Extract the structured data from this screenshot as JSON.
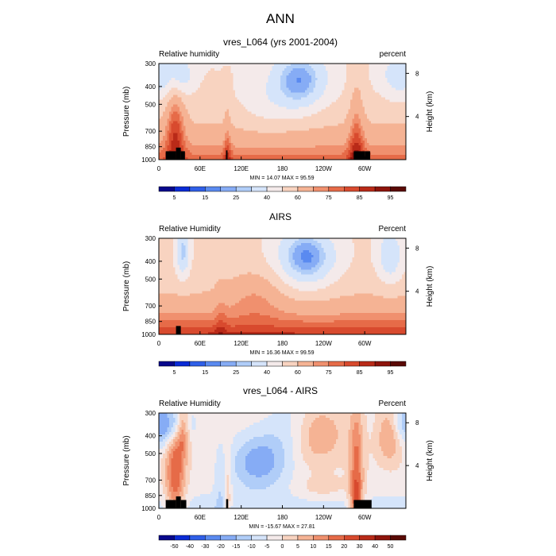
{
  "chart_data": {
    "type": "heatmap",
    "title": "ANN",
    "xticks": [
      "0",
      "60E",
      "120E",
      "180",
      "120W",
      "60W"
    ],
    "x_tick_lon": [
      0,
      60,
      120,
      180,
      240,
      300
    ],
    "x_range": [
      0,
      360
    ],
    "yticks": [
      "300",
      "400",
      "500",
      "700",
      "850",
      "1000"
    ],
    "y_tick_values": [
      300,
      400,
      500,
      700,
      850,
      1000
    ],
    "y_range": [
      300,
      1000
    ],
    "ylabel": "Pressure (mb)",
    "y2label": "Height (km)",
    "y2ticks": [
      "8",
      "4"
    ],
    "y2_tick_values": [
      8,
      4
    ],
    "panels": [
      {
        "title": "vres_L064 (yrs 2001-2004)",
        "left_label": "Relative humidity",
        "right_label": "percent",
        "stats": "MIN = 14.07  MAX = 95.59",
        "min": 14.07,
        "max": 95.59,
        "colorbar_labels": [
          "5",
          "15",
          "25",
          "40",
          "60",
          "75",
          "85",
          "95"
        ],
        "colors": [
          "#08088c",
          "#0a2bd6",
          "#2f5fe8",
          "#5a8af0",
          "#86acf5",
          "#b0cdf8",
          "#d5e4fa",
          "#f4eaea",
          "#f8d3c0",
          "#f5b394",
          "#f0906e",
          "#e66b48",
          "#d84a2e",
          "#b92a18",
          "#8e140c",
          "#5a0a05"
        ],
        "bounds": [
          5,
          10,
          15,
          20,
          25,
          30,
          40,
          50,
          60,
          70,
          75,
          80,
          85,
          90,
          95
        ]
      },
      {
        "title": "AIRS",
        "left_label": "Relative Humidity",
        "right_label": "Percent",
        "stats": "MIN = 16.36  MAX = 99.59",
        "min": 16.36,
        "max": 99.59,
        "colorbar_labels": [
          "5",
          "15",
          "25",
          "40",
          "60",
          "75",
          "85",
          "95"
        ],
        "colors": [
          "#08088c",
          "#0a2bd6",
          "#2f5fe8",
          "#5a8af0",
          "#86acf5",
          "#b0cdf8",
          "#d5e4fa",
          "#f4eaea",
          "#f8d3c0",
          "#f5b394",
          "#f0906e",
          "#e66b48",
          "#d84a2e",
          "#b92a18",
          "#8e140c",
          "#5a0a05"
        ],
        "bounds": [
          5,
          10,
          15,
          20,
          25,
          30,
          40,
          50,
          60,
          70,
          75,
          80,
          85,
          90,
          95
        ]
      },
      {
        "title": "vres_L064 - AIRS",
        "left_label": "Relative Humidity",
        "right_label": "Percent",
        "stats": "MIN = -15.67  MAX = 27.81",
        "min": -15.67,
        "max": 27.81,
        "colorbar_labels": [
          "-50",
          "-40",
          "-30",
          "-20",
          "-15",
          "-10",
          "-5",
          "0",
          "5",
          "10",
          "15",
          "20",
          "30",
          "40",
          "50"
        ],
        "colors": [
          "#08088c",
          "#0a2bd6",
          "#2f5fe8",
          "#5a8af0",
          "#86acf5",
          "#b0cdf8",
          "#d5e4fa",
          "#f4eaea",
          "#f8d3c0",
          "#f5b394",
          "#f0906e",
          "#e66b48",
          "#d84a2e",
          "#b92a18",
          "#8e140c",
          "#5a0a05"
        ],
        "bounds": [
          -50,
          -40,
          -30,
          -20,
          -15,
          -10,
          -5,
          0,
          5,
          10,
          15,
          20,
          30,
          40,
          50
        ]
      }
    ]
  }
}
